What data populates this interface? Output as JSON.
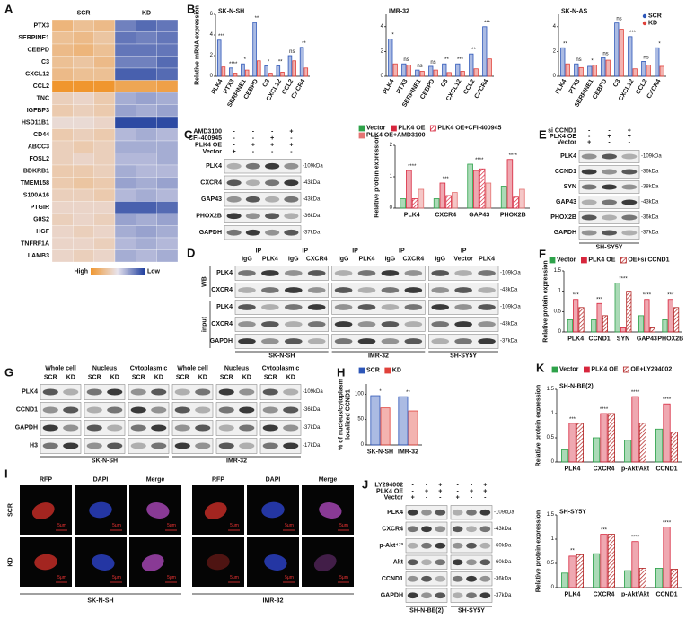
{
  "panel_labels": [
    "A",
    "B",
    "C",
    "D",
    "E",
    "F",
    "G",
    "H",
    "I",
    "J",
    "K"
  ],
  "heatmap": {
    "groups": [
      "SCR",
      "KD"
    ],
    "genes": [
      "PTX3",
      "SERPINE1",
      "CEBPD",
      "C3",
      "CXCL12",
      "CCL2",
      "TNC",
      "IGFBP3",
      "HSD11B1",
      "CD44",
      "ABCC3",
      "FOSL2",
      "BDKRB1",
      "TMEM158",
      "S100A16",
      "PTGIR",
      "G0S2",
      "HGF",
      "TNFRF1A",
      "LAMB3"
    ],
    "values": [
      [
        0.9,
        0.7,
        0.8,
        -0.9,
        -1.1,
        -1.0
      ],
      [
        0.7,
        0.8,
        0.6,
        -1.0,
        -0.9,
        -1.0
      ],
      [
        0.8,
        0.9,
        0.7,
        -1.0,
        -1.0,
        -1.0
      ],
      [
        0.7,
        0.6,
        0.8,
        -0.9,
        -0.9,
        -1.1
      ],
      [
        0.8,
        0.7,
        0.7,
        -1.2,
        -1.2,
        -1.1
      ],
      [
        1.5,
        1.5,
        1.5,
        1.2,
        1.2,
        1.3
      ],
      [
        0.4,
        0.3,
        0.5,
        -0.5,
        -0.6,
        -0.5
      ],
      [
        0.5,
        0.4,
        0.5,
        -0.6,
        -0.5,
        -0.6
      ],
      [
        0.2,
        0.2,
        0.3,
        -1.4,
        -1.4,
        -1.4
      ],
      [
        0.5,
        0.4,
        0.5,
        -0.4,
        -0.5,
        -0.4
      ],
      [
        0.4,
        0.5,
        0.4,
        -0.5,
        -0.5,
        -0.5
      ],
      [
        0.4,
        0.3,
        0.4,
        -0.4,
        -0.4,
        -0.5
      ],
      [
        0.5,
        0.5,
        0.4,
        -0.5,
        -0.4,
        -0.4
      ],
      [
        0.5,
        0.6,
        0.5,
        -0.6,
        -0.5,
        -0.6
      ],
      [
        0.4,
        0.4,
        0.5,
        -0.4,
        -0.5,
        -0.4
      ],
      [
        0.3,
        0.3,
        0.3,
        -1.2,
        -1.2,
        -1.1
      ],
      [
        0.4,
        0.3,
        0.4,
        -0.6,
        -0.5,
        -0.6
      ],
      [
        0.3,
        0.4,
        0.3,
        -0.5,
        -0.6,
        -0.5
      ],
      [
        0.3,
        0.3,
        0.4,
        -0.4,
        -0.5,
        -0.4
      ],
      [
        0.3,
        0.4,
        0.3,
        -0.5,
        -0.4,
        -0.5
      ]
    ],
    "vlim": [
      -1.5,
      1.5
    ],
    "colors": {
      "low": "#203f9e",
      "mid": "#e8e4ee",
      "high": "#f0962e"
    },
    "legend_labels": [
      "High",
      "Low"
    ]
  },
  "chart_data": [
    {
      "type": "bar",
      "title": "SK-N-SH",
      "y_label": "Relative mRNA expression",
      "categories": [
        "PLK4",
        "PTX3",
        "SERPINE1",
        "CEBPD",
        "C3",
        "CXCL12",
        "CCL2",
        "CXCR4"
      ],
      "series": [
        {
          "color": "#2d56b8",
          "values": [
            3.5,
            0.8,
            1.2,
            5.2,
            1.0,
            1.0,
            2.0,
            2.8
          ]
        },
        {
          "color": "#e0413a",
          "values": [
            0.9,
            0.3,
            0.6,
            1.5,
            0.3,
            0.4,
            1.5,
            0.8
          ]
        }
      ],
      "annotations": [
        "***",
        "****",
        "*",
        "**",
        "*",
        "**",
        "ns",
        "**"
      ],
      "ylim": [
        0,
        6
      ],
      "yticks": [
        0,
        2,
        4,
        6
      ]
    },
    {
      "type": "bar",
      "title": "IMR-32",
      "categories": [
        "PLK4",
        "PTX3",
        "SERPINE1",
        "CEBPD",
        "C3",
        "CXCL12",
        "CCL2",
        "CXCR4"
      ],
      "series": [
        {
          "color": "#2d56b8",
          "values": [
            3.0,
            1.0,
            0.5,
            0.8,
            1.0,
            1.0,
            1.8,
            4.0
          ]
        },
        {
          "color": "#e0413a",
          "values": [
            1.0,
            0.9,
            0.4,
            0.5,
            0.3,
            0.4,
            0.6,
            1.4
          ]
        }
      ],
      "annotations": [
        "*",
        "ns",
        "ns",
        "ns",
        "**",
        "***",
        "**",
        "***"
      ],
      "ylim": [
        0,
        5
      ],
      "yticks": [
        0,
        2,
        4
      ]
    },
    {
      "type": "bar",
      "title": "SK-N-AS",
      "categories": [
        "PLK4",
        "PTX3",
        "SERPINE1",
        "CEBPD",
        "C3",
        "CXCL12",
        "CCL2",
        "CXCR4"
      ],
      "series": [
        {
          "name": "SCR",
          "color": "#2d56b8",
          "values": [
            2.3,
            1.0,
            0.8,
            1.5,
            4.3,
            3.2,
            1.2,
            2.3
          ]
        },
        {
          "name": "KD",
          "color": "#e0413a",
          "values": [
            1.0,
            0.7,
            0.9,
            1.3,
            3.8,
            0.6,
            0.9,
            0.8
          ]
        }
      ],
      "annotations": [
        "**",
        "ns",
        "*",
        "ns",
        "ns",
        "***",
        "ns",
        "*"
      ],
      "ylim": [
        0,
        5
      ],
      "yticks": [
        0,
        2,
        4
      ],
      "legend": "top-right"
    },
    {
      "type": "bar",
      "y_label": "Relative protein expression",
      "categories": [
        "PLK4",
        "CXCR4",
        "GAP43",
        "PHOX2B"
      ],
      "series": [
        {
          "name": "Vector",
          "color": "#2ea24a",
          "values": [
            0.3,
            0.3,
            1.4,
            0.7
          ]
        },
        {
          "name": "PLK4 OE",
          "color": "#d7263d",
          "values": [
            1.2,
            0.8,
            1.2,
            1.55
          ]
        },
        {
          "name": "PLK4 OE+CFI-400945",
          "color": "#d7263d",
          "pattern": "hatch",
          "values": [
            0.3,
            0.4,
            1.25,
            0.35
          ]
        },
        {
          "name": "PLK4 OE+AMD3100",
          "color": "#e57373",
          "values": [
            0.6,
            0.5,
            0.8,
            0.6
          ]
        }
      ],
      "annotations": [
        "****",
        "***",
        "****",
        "****"
      ],
      "ylim": [
        0,
        2
      ],
      "yticks": [
        0,
        1,
        2
      ],
      "legend": "top"
    },
    {
      "type": "bar",
      "y_label": "Relative protein expression",
      "categories": [
        "PLK4",
        "CCND1",
        "SYN",
        "GAP43",
        "PHOX2B"
      ],
      "series": [
        {
          "name": "Vector",
          "color": "#2ea24a",
          "values": [
            0.3,
            0.3,
            1.2,
            0.4,
            0.3
          ]
        },
        {
          "name": "PLK4 OE",
          "color": "#d7263d",
          "values": [
            0.8,
            0.7,
            0.1,
            0.8,
            0.8
          ]
        },
        {
          "name": "OE+si CCND1",
          "color": "#b22222",
          "pattern": "hatch",
          "values": [
            0.6,
            0.4,
            1.0,
            0.1,
            0.6
          ]
        }
      ],
      "annotations": [
        "***",
        "***",
        "****",
        "****",
        "***"
      ],
      "ylim": [
        0,
        1.5
      ],
      "yticks": [
        0,
        0.5,
        1,
        1.5
      ],
      "legend": "top"
    },
    {
      "type": "bar",
      "y_label": [
        "% of nucleus/cytoplasm",
        "localized CCND1"
      ],
      "categories": [
        "SK-N-SH",
        "IMR-32"
      ],
      "series": [
        {
          "name": "SCR",
          "color": "#2d56b8",
          "values": [
            97,
            95
          ]
        },
        {
          "name": "KD",
          "color": "#e0413a",
          "values": [
            73,
            67
          ]
        }
      ],
      "annotations": [
        "*",
        "**"
      ],
      "ylim": [
        0,
        120
      ],
      "yticks": [
        0,
        50,
        100
      ],
      "legend": "top"
    },
    {
      "type": "bar",
      "title": "SH-N-BE(2)",
      "y_label": "Relative protein expression",
      "categories": [
        "PLK4",
        "CXCR4",
        "p-Akt/Akt",
        "CCND1"
      ],
      "series": [
        {
          "name": "Vector",
          "color": "#2ea24a",
          "values": [
            0.25,
            0.5,
            0.45,
            0.68
          ]
        },
        {
          "name": "PLK4 OE",
          "color": "#d7263d",
          "values": [
            0.8,
            1.0,
            1.35,
            1.2
          ]
        },
        {
          "name": "OE+LY294002",
          "color": "#b22222",
          "pattern": "hatch",
          "values": [
            0.8,
            1.0,
            0.8,
            0.62
          ]
        }
      ],
      "annotations": [
        "***",
        "****",
        "****",
        "****"
      ],
      "ylim": [
        0,
        1.5
      ],
      "yticks": [
        0,
        0.5,
        1,
        1.5
      ],
      "legend": "top"
    },
    {
      "type": "bar",
      "title": "SH-SY5Y",
      "y_label": "Relative protein expression",
      "categories": [
        "PLK4",
        "CXCR4",
        "p-Akt/Akt",
        "CCND1"
      ],
      "series": [
        {
          "color": "#2ea24a",
          "values": [
            0.3,
            0.7,
            0.35,
            0.4
          ]
        },
        {
          "color": "#d7263d",
          "values": [
            0.65,
            1.1,
            0.95,
            1.25
          ]
        },
        {
          "color": "#b22222",
          "pattern": "hatch",
          "values": [
            0.68,
            1.1,
            0.4,
            0.38
          ]
        }
      ],
      "annotations": [
        "**",
        "***",
        "****",
        "****"
      ],
      "ylim": [
        0,
        1.5
      ],
      "yticks": [
        0,
        0.5,
        1,
        1.5
      ]
    }
  ],
  "blots": [
    {
      "conditions": [
        {
          "name": "AMD3100",
          "signs": [
            "-",
            "-",
            "-",
            "+"
          ]
        },
        {
          "name": "CFI-400945",
          "signs": [
            "-",
            "-",
            "+",
            "-"
          ]
        },
        {
          "name": "PLK4 OE",
          "signs": [
            "-",
            "+",
            "+",
            "+"
          ]
        },
        {
          "name": "Vector",
          "signs": [
            "+",
            "-",
            "-",
            "-"
          ]
        }
      ],
      "rows": [
        {
          "name": "PLK4",
          "kda": "-109kDa"
        },
        {
          "name": "CXCR4",
          "kda": "-43kDa"
        },
        {
          "name": "GAP43",
          "kda": "-43kDa"
        },
        {
          "name": "PHOX2B",
          "kda": "-36kDa"
        },
        {
          "name": "GAPDH",
          "kda": "-37kDa"
        }
      ]
    },
    {
      "conditions": [
        {
          "name": "si CCND1",
          "signs": [
            "-",
            "-",
            "+"
          ]
        },
        {
          "name": "PLK4 OE",
          "signs": [
            "-",
            "+",
            "+"
          ]
        },
        {
          "name": "Vector",
          "signs": [
            "+",
            "-",
            "-"
          ]
        }
      ],
      "rows": [
        {
          "name": "PLK4",
          "kda": "-109kDa"
        },
        {
          "name": "CCND1",
          "kda": "-36kDa"
        },
        {
          "name": "SYN",
          "kda": "-38kDa"
        },
        {
          "name": "GAP43",
          "kda": "-43kDa"
        },
        {
          "name": "PHOX2B",
          "kda": "-36kDa"
        },
        {
          "name": "GAPDH",
          "kda": "-37kDa"
        }
      ],
      "footers": [
        "SH-SY5Y"
      ]
    },
    {
      "groups": [
        "IP",
        "IP",
        "IP",
        "IP",
        "IP"
      ],
      "lanes": [
        "IgG",
        "PLK4",
        "IgG",
        "CXCR4",
        "IgG",
        "PLK4",
        "IgG",
        "CXCR4",
        "IgG",
        "Vector",
        "PLK4"
      ],
      "sections": [
        "WB",
        "input"
      ],
      "rows": [
        {
          "name": "PLK4",
          "kda": "-109kDa"
        },
        {
          "name": "CXCR4",
          "kda": "-43kDa"
        },
        {
          "name": "PLK4",
          "kda": "-109kDa"
        },
        {
          "name": "CXCR4",
          "kda": "-43kDa"
        },
        {
          "name": "GAPDH",
          "kda": "-37kDa"
        }
      ],
      "footers": [
        "SK-N-SH",
        "IMR-32",
        "SH-SY5Y"
      ]
    },
    {
      "groups": [
        "Whole cell",
        "Nucleus",
        "Cytoplasmic",
        "Whole cell",
        "Nucleus",
        "Cytoplasmic"
      ],
      "lanes": [
        "SCR",
        "KD",
        "SCR",
        "KD",
        "SCR",
        "KD",
        "SCR",
        "KD",
        "SCR",
        "KD",
        "SCR",
        "KD"
      ],
      "rows": [
        {
          "name": "PLK4",
          "kda": "-109kDa"
        },
        {
          "name": "CCND1",
          "kda": "-36kDa"
        },
        {
          "name": "GAPDH",
          "kda": "-37kDa"
        },
        {
          "name": "H3",
          "kda": "-17kDa"
        }
      ],
      "footers": [
        "SK-N-SH",
        "IMR-32"
      ]
    },
    {
      "conditions": [
        {
          "name": "LY294002",
          "signs": [
            "-",
            "-",
            "+",
            "-",
            "-",
            "+"
          ]
        },
        {
          "name": "PLK4 OE",
          "signs": [
            "-",
            "+",
            "+",
            "-",
            "+",
            "+"
          ]
        },
        {
          "name": "Vector",
          "signs": [
            "+",
            "-",
            "-",
            "+",
            "-",
            "-"
          ]
        }
      ],
      "rows": [
        {
          "name": "PLK4",
          "kda": "-109kDa"
        },
        {
          "name": "CXCR4",
          "kda": "-43kDa"
        },
        {
          "name": "p-Akt⁴⁷³",
          "kda": "-60kDa"
        },
        {
          "name": "Akt",
          "kda": "-60kDa"
        },
        {
          "name": "CCND1",
          "kda": "-36kDa"
        },
        {
          "name": "GAPDH",
          "kda": "-37kDa"
        }
      ],
      "footers": [
        "SH-N-BE(2)",
        "SH-SY5Y"
      ]
    }
  ],
  "images": {
    "columns": [
      "RFP",
      "DAPI",
      "Merge",
      "RFP",
      "DAPI",
      "Merge"
    ],
    "rows": [
      "SCR",
      "KD"
    ],
    "scale_label": "5μm",
    "footers": [
      "SK-N-SH",
      "IMR-32"
    ]
  }
}
